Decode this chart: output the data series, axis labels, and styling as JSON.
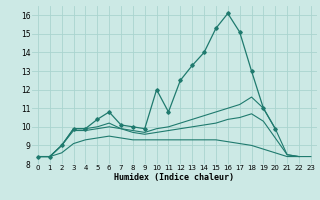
{
  "xlabel": "Humidex (Indice chaleur)",
  "xlim": [
    -0.5,
    23.5
  ],
  "ylim": [
    8.0,
    16.5
  ],
  "yticks": [
    8,
    9,
    10,
    11,
    12,
    13,
    14,
    15,
    16
  ],
  "xticks": [
    0,
    1,
    2,
    3,
    4,
    5,
    6,
    7,
    8,
    9,
    10,
    11,
    12,
    13,
    14,
    15,
    16,
    17,
    18,
    19,
    20,
    21,
    22,
    23
  ],
  "bg_color": "#cce9e5",
  "grid_color": "#aad4cf",
  "line_color": "#1f7a6e",
  "line1_x": [
    0,
    1,
    2,
    3,
    4,
    5,
    6,
    7,
    8,
    9,
    10,
    11,
    12,
    13,
    14,
    15,
    16,
    17,
    18,
    19,
    20
  ],
  "line1_y": [
    8.4,
    8.4,
    9.0,
    9.9,
    9.9,
    10.4,
    10.8,
    10.1,
    10.0,
    9.9,
    12.0,
    10.8,
    12.5,
    13.3,
    14.0,
    15.3,
    16.1,
    15.1,
    13.0,
    11.0,
    9.9
  ],
  "line2_x": [
    0,
    1,
    2,
    3,
    4,
    5,
    6,
    7,
    8,
    9,
    10,
    11,
    12,
    13,
    14,
    15,
    16,
    17,
    18,
    19,
    20,
    21,
    22
  ],
  "line2_y": [
    8.4,
    8.4,
    9.0,
    9.9,
    9.9,
    10.0,
    10.2,
    9.9,
    9.8,
    9.7,
    9.9,
    10.0,
    10.2,
    10.4,
    10.6,
    10.8,
    11.0,
    11.2,
    11.6,
    11.0,
    9.9,
    8.5,
    8.4
  ],
  "line3_x": [
    0,
    1,
    2,
    3,
    4,
    5,
    6,
    7,
    8,
    9,
    10,
    11,
    12,
    13,
    14,
    15,
    16,
    17,
    18,
    19,
    20,
    21,
    22
  ],
  "line3_y": [
    8.4,
    8.4,
    9.0,
    9.8,
    9.8,
    9.9,
    10.0,
    9.9,
    9.7,
    9.6,
    9.7,
    9.8,
    9.9,
    10.0,
    10.1,
    10.2,
    10.4,
    10.5,
    10.7,
    10.3,
    9.4,
    8.5,
    8.4
  ],
  "line4_x": [
    0,
    1,
    2,
    3,
    4,
    5,
    6,
    7,
    8,
    9,
    10,
    11,
    12,
    13,
    14,
    15,
    16,
    17,
    18,
    19,
    20,
    21,
    22,
    23
  ],
  "line4_y": [
    8.4,
    8.4,
    8.6,
    9.1,
    9.3,
    9.4,
    9.5,
    9.4,
    9.3,
    9.3,
    9.3,
    9.3,
    9.3,
    9.3,
    9.3,
    9.3,
    9.2,
    9.1,
    9.0,
    8.8,
    8.6,
    8.4,
    8.4,
    8.4
  ]
}
